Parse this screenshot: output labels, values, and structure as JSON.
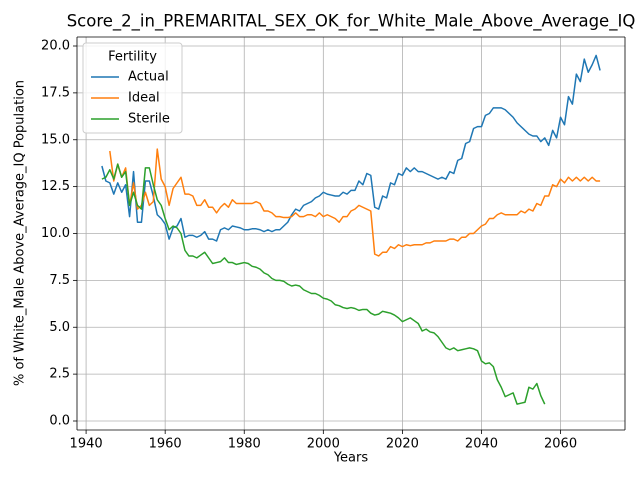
{
  "chart_data": {
    "type": "line",
    "title": "Score_2_in_PREMARITAL_SEX_OK_for_White_Male_Above_Average_IQ",
    "xlabel": "Years",
    "ylabel": "% of White_Male Above_Average_IQ Population",
    "legend_title": "Fertility",
    "legend_position": "upper left",
    "grid": true,
    "xlim": [
      1937.7,
      2076.3
    ],
    "ylim": [
      -0.48,
      20.48
    ],
    "xticks": [
      1940,
      1960,
      1980,
      2000,
      2020,
      2040,
      2060
    ],
    "yticks": [
      {
        "value": 0,
        "label": "0.0"
      },
      {
        "value": 2.5,
        "label": "2.5"
      },
      {
        "value": 5,
        "label": "5.0"
      },
      {
        "value": 7.5,
        "label": "7.5"
      },
      {
        "value": 10,
        "label": "10.0"
      },
      {
        "value": 12.5,
        "label": "12.5"
      },
      {
        "value": 15,
        "label": "15.0"
      },
      {
        "value": 17.5,
        "label": "17.5"
      },
      {
        "value": 20,
        "label": "20.0"
      }
    ],
    "x": [
      1944,
      1945,
      1946,
      1947,
      1948,
      1949,
      1950,
      1951,
      1952,
      1953,
      1954,
      1955,
      1956,
      1957,
      1958,
      1959,
      1960,
      1961,
      1962,
      1963,
      1964,
      1965,
      1966,
      1967,
      1968,
      1969,
      1970,
      1971,
      1972,
      1973,
      1974,
      1975,
      1976,
      1977,
      1978,
      1979,
      1980,
      1981,
      1982,
      1983,
      1984,
      1985,
      1986,
      1987,
      1988,
      1989,
      1990,
      1991,
      1992,
      1993,
      1994,
      1995,
      1996,
      1997,
      1998,
      1999,
      2000,
      2001,
      2002,
      2003,
      2004,
      2005,
      2006,
      2007,
      2008,
      2009,
      2010,
      2011,
      2012,
      2013,
      2014,
      2015,
      2016,
      2017,
      2018,
      2019,
      2020,
      2021,
      2022,
      2023,
      2024,
      2025,
      2026,
      2027,
      2028,
      2029,
      2030,
      2031,
      2032,
      2033,
      2034,
      2035,
      2036,
      2037,
      2038,
      2039,
      2040,
      2041,
      2042,
      2043,
      2044,
      2045,
      2046,
      2047,
      2048,
      2049,
      2050,
      2051,
      2052,
      2053,
      2054,
      2055,
      2056,
      2057,
      2058,
      2059,
      2060,
      2061,
      2062,
      2063,
      2064,
      2065,
      2066,
      2067,
      2068,
      2069,
      2070
    ],
    "series": [
      {
        "name": "Actual",
        "color": "#1f77b4",
        "values": [
          13.6,
          12.8,
          12.7,
          12.1,
          12.7,
          12.2,
          12.6,
          10.9,
          13.3,
          10.6,
          10.6,
          12.8,
          12.8,
          12.0,
          11.0,
          10.8,
          10.5,
          9.7,
          10.3,
          10.4,
          10.8,
          9.8,
          9.9,
          9.9,
          9.8,
          9.9,
          10.1,
          9.7,
          9.7,
          9.6,
          10.2,
          10.3,
          10.2,
          10.4,
          10.35,
          10.3,
          10.2,
          10.2,
          10.25,
          10.25,
          10.2,
          10.1,
          10.2,
          10.1,
          10.2,
          10.2,
          10.4,
          10.6,
          11.0,
          11.3,
          11.2,
          11.5,
          11.6,
          11.7,
          11.9,
          12.0,
          12.2,
          12.1,
          12.05,
          12.0,
          12.0,
          12.2,
          12.1,
          12.3,
          12.3,
          12.8,
          12.6,
          13.2,
          13.1,
          11.4,
          11.3,
          12.0,
          11.9,
          12.7,
          12.6,
          13.2,
          13.1,
          13.5,
          13.3,
          13.5,
          13.3,
          13.3,
          13.2,
          13.1,
          13.0,
          12.9,
          13.0,
          12.9,
          13.3,
          13.2,
          13.9,
          14.0,
          14.8,
          14.9,
          15.6,
          15.7,
          15.7,
          16.3,
          16.4,
          16.7,
          16.7,
          16.7,
          16.6,
          16.4,
          16.2,
          15.9,
          15.7,
          15.5,
          15.3,
          15.2,
          15.2,
          14.9,
          15.1,
          14.7,
          15.5,
          15.1,
          16.2,
          15.8,
          17.3,
          16.9,
          18.5,
          18.1,
          19.3,
          18.6,
          19.0,
          19.5,
          18.7
        ]
      },
      {
        "name": "Ideal",
        "color": "#ff7f0e",
        "values": [
          null,
          null,
          14.4,
          12.8,
          13.7,
          13.0,
          13.5,
          11.5,
          12.7,
          11.3,
          11.5,
          12.2,
          11.5,
          11.7,
          14.5,
          12.9,
          12.5,
          11.5,
          12.4,
          12.7,
          13.0,
          12.1,
          12.1,
          12.0,
          11.5,
          11.5,
          11.8,
          11.4,
          11.4,
          11.1,
          11.4,
          11.6,
          11.4,
          11.8,
          11.6,
          11.6,
          11.6,
          11.6,
          11.6,
          11.7,
          11.6,
          11.2,
          11.2,
          11.1,
          10.9,
          10.9,
          10.85,
          10.85,
          10.9,
          11.1,
          10.9,
          10.9,
          11.0,
          11.0,
          10.9,
          11.1,
          10.9,
          11.0,
          10.9,
          10.8,
          10.6,
          10.9,
          10.9,
          11.2,
          11.3,
          11.5,
          11.4,
          11.3,
          11.2,
          8.9,
          8.8,
          9.0,
          9.0,
          9.3,
          9.2,
          9.4,
          9.3,
          9.4,
          9.35,
          9.4,
          9.4,
          9.4,
          9.5,
          9.5,
          9.6,
          9.6,
          9.6,
          9.6,
          9.7,
          9.7,
          9.6,
          9.8,
          9.8,
          10.0,
          10.0,
          10.2,
          10.4,
          10.5,
          10.8,
          10.8,
          11.0,
          11.1,
          11.0,
          11.0,
          11.0,
          11.0,
          11.2,
          11.1,
          11.3,
          11.2,
          11.6,
          11.5,
          12.0,
          12.0,
          12.6,
          12.5,
          12.9,
          12.7,
          13.0,
          12.8,
          13.0,
          12.8,
          13.0,
          12.8,
          13.0,
          12.8,
          12.8
        ]
      },
      {
        "name": "Sterile",
        "color": "#2ca02c",
        "values": [
          12.9,
          13.0,
          13.4,
          12.9,
          13.7,
          13.0,
          13.3,
          11.5,
          12.2,
          11.5,
          11.3,
          13.5,
          13.5,
          12.6,
          11.8,
          11.5,
          10.8,
          10.2,
          10.4,
          10.3,
          10.0,
          9.1,
          8.8,
          8.8,
          8.7,
          8.85,
          9.0,
          8.7,
          8.4,
          8.45,
          8.5,
          8.7,
          8.45,
          8.45,
          8.35,
          8.4,
          8.45,
          8.4,
          8.25,
          8.2,
          8.1,
          7.9,
          7.8,
          7.6,
          7.5,
          7.5,
          7.45,
          7.3,
          7.2,
          7.25,
          7.2,
          7.0,
          6.9,
          6.8,
          6.8,
          6.7,
          6.55,
          6.5,
          6.4,
          6.2,
          6.15,
          6.05,
          6.0,
          6.05,
          6.0,
          5.9,
          5.95,
          5.95,
          5.75,
          5.65,
          5.7,
          5.85,
          5.8,
          5.75,
          5.65,
          5.5,
          5.3,
          5.4,
          5.5,
          5.35,
          5.2,
          4.8,
          4.9,
          4.75,
          4.7,
          4.5,
          4.2,
          3.9,
          3.8,
          3.9,
          3.75,
          3.8,
          3.85,
          3.9,
          3.85,
          3.75,
          3.2,
          3.05,
          3.1,
          2.9,
          2.2,
          1.8,
          1.3,
          1.4,
          1.5,
          0.9,
          0.95,
          1.0,
          1.8,
          1.7,
          2.0,
          1.35,
          0.9,
          null,
          null,
          null,
          null,
          null,
          null,
          null,
          null,
          null,
          null,
          null,
          null,
          null,
          null
        ]
      }
    ]
  }
}
